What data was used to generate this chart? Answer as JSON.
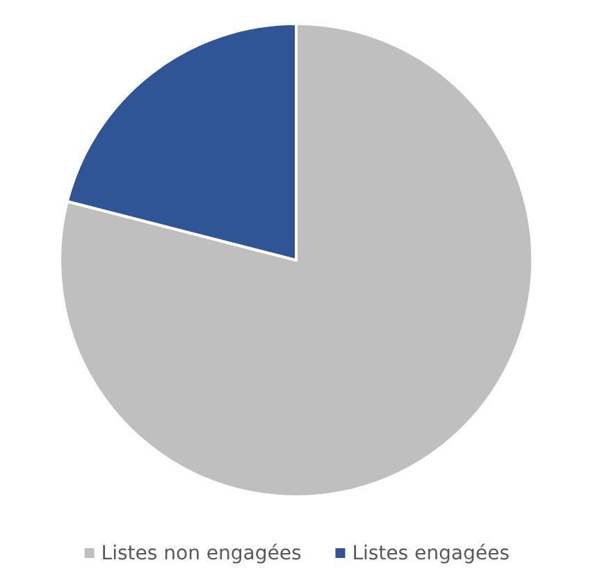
{
  "chart_data": {
    "type": "pie",
    "categories": [
      "Listes non engagées",
      "Listes engagées"
    ],
    "values": [
      79,
      21
    ],
    "colors": [
      "#bfbfbf",
      "#2f5597"
    ],
    "legend": "bottom"
  }
}
